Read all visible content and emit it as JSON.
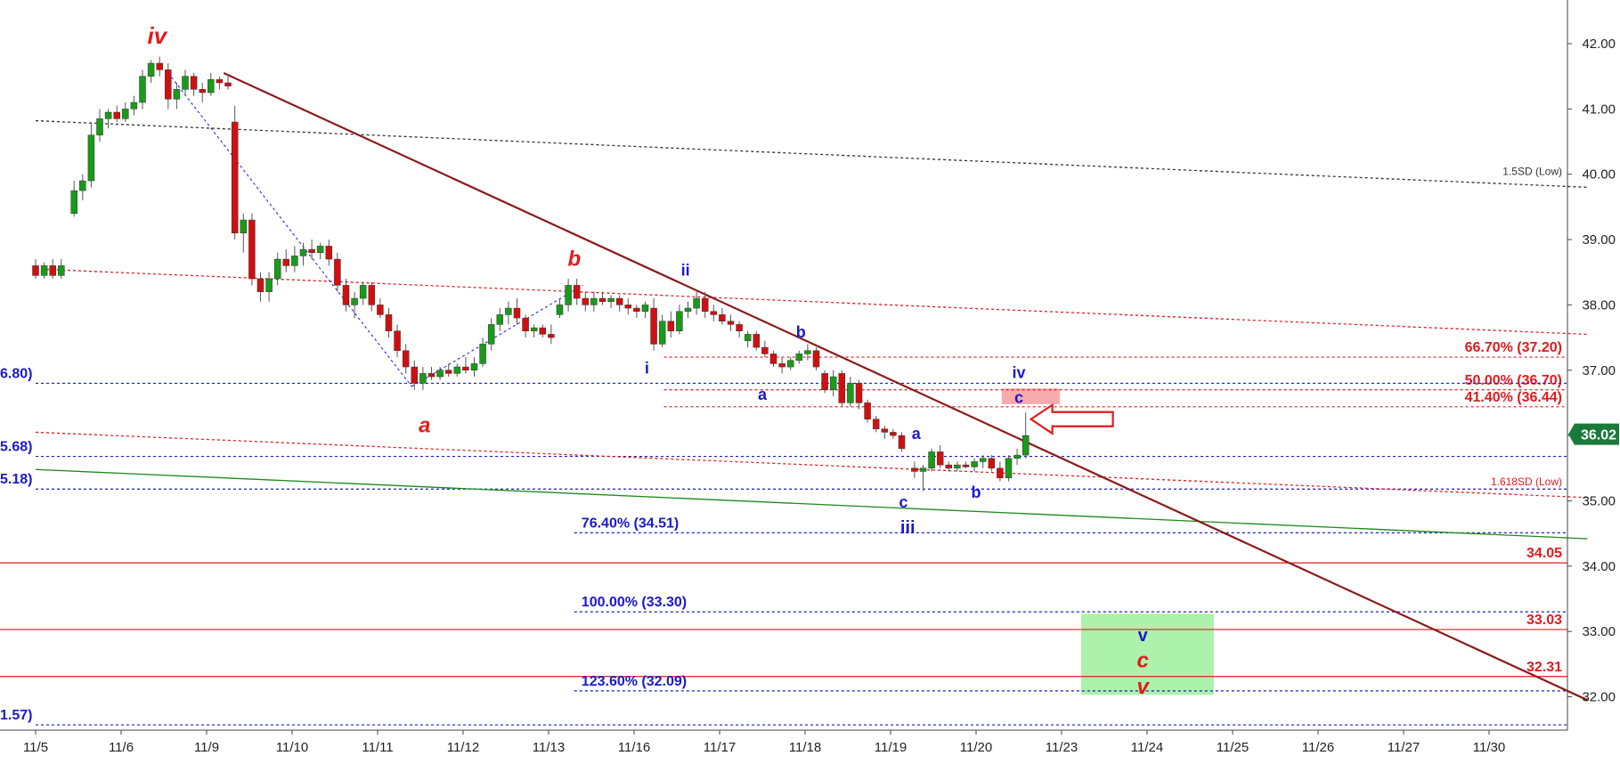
{
  "chart_data": {
    "type": "candlestick",
    "title": "",
    "xlabel": "",
    "ylabel": "",
    "ylim": [
      31.5,
      42.6
    ],
    "y_ticks": [
      "42.00",
      "41.00",
      "40.00",
      "39.00",
      "38.00",
      "37.00",
      "36.00",
      "35.00",
      "34.00",
      "33.00",
      "32.00"
    ],
    "x_ticks": [
      "11/5",
      "11/6",
      "11/9",
      "11/10",
      "11/11",
      "11/12",
      "11/13",
      "11/16",
      "11/17",
      "11/18",
      "11/19",
      "11/20",
      "11/23",
      "11/24",
      "11/25",
      "11/26",
      "11/27",
      "11/30"
    ],
    "grid": false,
    "last_price": {
      "label": "36.02",
      "value": 36.02
    },
    "candles": [
      {
        "x": 0.0,
        "o": 38.6,
        "h": 38.7,
        "l": 38.4,
        "c": 38.45
      },
      {
        "x": 0.1,
        "o": 38.45,
        "h": 38.65,
        "l": 38.4,
        "c": 38.6
      },
      {
        "x": 0.2,
        "o": 38.6,
        "h": 38.7,
        "l": 38.4,
        "c": 38.45
      },
      {
        "x": 0.3,
        "o": 38.45,
        "h": 38.7,
        "l": 38.4,
        "c": 38.6
      },
      {
        "x": 0.45,
        "o": 39.4,
        "h": 39.9,
        "l": 39.35,
        "c": 39.75
      },
      {
        "x": 0.55,
        "o": 39.75,
        "h": 40.0,
        "l": 39.6,
        "c": 39.9
      },
      {
        "x": 0.65,
        "o": 39.9,
        "h": 40.8,
        "l": 39.8,
        "c": 40.6
      },
      {
        "x": 0.75,
        "o": 40.6,
        "h": 41.0,
        "l": 40.5,
        "c": 40.85
      },
      {
        "x": 0.85,
        "o": 40.85,
        "h": 41.0,
        "l": 40.7,
        "c": 40.95
      },
      {
        "x": 0.95,
        "o": 40.95,
        "h": 41.05,
        "l": 40.8,
        "c": 40.85
      },
      {
        "x": 1.05,
        "o": 40.85,
        "h": 41.1,
        "l": 40.8,
        "c": 41.0
      },
      {
        "x": 1.15,
        "o": 41.0,
        "h": 41.2,
        "l": 40.9,
        "c": 41.1
      },
      {
        "x": 1.25,
        "o": 41.1,
        "h": 41.6,
        "l": 41.0,
        "c": 41.5
      },
      {
        "x": 1.35,
        "o": 41.5,
        "h": 41.75,
        "l": 41.4,
        "c": 41.7
      },
      {
        "x": 1.45,
        "o": 41.7,
        "h": 41.8,
        "l": 41.5,
        "c": 41.6
      },
      {
        "x": 1.55,
        "o": 41.6,
        "h": 41.7,
        "l": 41.0,
        "c": 41.15
      },
      {
        "x": 1.65,
        "o": 41.15,
        "h": 41.4,
        "l": 41.0,
        "c": 41.3
      },
      {
        "x": 1.75,
        "o": 41.3,
        "h": 41.6,
        "l": 41.2,
        "c": 41.5
      },
      {
        "x": 1.85,
        "o": 41.5,
        "h": 41.55,
        "l": 41.2,
        "c": 41.3
      },
      {
        "x": 1.95,
        "o": 41.3,
        "h": 41.4,
        "l": 41.1,
        "c": 41.25
      },
      {
        "x": 2.05,
        "o": 41.25,
        "h": 41.55,
        "l": 41.2,
        "c": 41.45
      },
      {
        "x": 2.15,
        "o": 41.45,
        "h": 41.5,
        "l": 41.3,
        "c": 41.4
      },
      {
        "x": 2.25,
        "o": 41.4,
        "h": 41.5,
        "l": 41.3,
        "c": 41.35
      },
      {
        "x": 2.33,
        "o": 40.8,
        "h": 41.05,
        "l": 39.0,
        "c": 39.1
      },
      {
        "x": 2.43,
        "o": 39.1,
        "h": 39.4,
        "l": 38.8,
        "c": 39.3
      },
      {
        "x": 2.53,
        "o": 39.3,
        "h": 39.4,
        "l": 38.3,
        "c": 38.4
      },
      {
        "x": 2.63,
        "o": 38.4,
        "h": 38.5,
        "l": 38.05,
        "c": 38.2
      },
      {
        "x": 2.73,
        "o": 38.2,
        "h": 38.5,
        "l": 38.05,
        "c": 38.4
      },
      {
        "x": 2.83,
        "o": 38.4,
        "h": 38.8,
        "l": 38.3,
        "c": 38.7
      },
      {
        "x": 2.93,
        "o": 38.7,
        "h": 38.85,
        "l": 38.5,
        "c": 38.6
      },
      {
        "x": 3.03,
        "o": 38.6,
        "h": 38.9,
        "l": 38.5,
        "c": 38.75
      },
      {
        "x": 3.13,
        "o": 38.75,
        "h": 38.95,
        "l": 38.6,
        "c": 38.85
      },
      {
        "x": 3.23,
        "o": 38.85,
        "h": 39.0,
        "l": 38.7,
        "c": 38.8
      },
      {
        "x": 3.33,
        "o": 38.8,
        "h": 38.95,
        "l": 38.7,
        "c": 38.9
      },
      {
        "x": 3.43,
        "o": 38.9,
        "h": 39.0,
        "l": 38.6,
        "c": 38.7
      },
      {
        "x": 3.53,
        "o": 38.7,
        "h": 38.8,
        "l": 38.2,
        "c": 38.3
      },
      {
        "x": 3.63,
        "o": 38.3,
        "h": 38.4,
        "l": 37.9,
        "c": 38.0
      },
      {
        "x": 3.73,
        "o": 38.0,
        "h": 38.2,
        "l": 37.8,
        "c": 38.1
      },
      {
        "x": 3.83,
        "o": 38.1,
        "h": 38.35,
        "l": 38.0,
        "c": 38.3
      },
      {
        "x": 3.93,
        "o": 38.3,
        "h": 38.35,
        "l": 37.9,
        "c": 38.0
      },
      {
        "x": 4.03,
        "o": 38.0,
        "h": 38.1,
        "l": 37.8,
        "c": 37.85
      },
      {
        "x": 4.13,
        "o": 37.85,
        "h": 37.95,
        "l": 37.5,
        "c": 37.6
      },
      {
        "x": 4.23,
        "o": 37.6,
        "h": 37.7,
        "l": 37.2,
        "c": 37.3
      },
      {
        "x": 4.33,
        "o": 37.3,
        "h": 37.4,
        "l": 36.95,
        "c": 37.05
      },
      {
        "x": 4.43,
        "o": 37.05,
        "h": 37.15,
        "l": 36.7,
        "c": 36.8
      },
      {
        "x": 4.53,
        "o": 36.8,
        "h": 37.05,
        "l": 36.7,
        "c": 36.95
      },
      {
        "x": 4.63,
        "o": 36.95,
        "h": 37.05,
        "l": 36.85,
        "c": 36.9
      },
      {
        "x": 4.73,
        "o": 36.9,
        "h": 37.05,
        "l": 36.85,
        "c": 37.0
      },
      {
        "x": 4.83,
        "o": 37.0,
        "h": 37.1,
        "l": 36.9,
        "c": 36.95
      },
      {
        "x": 4.93,
        "o": 36.95,
        "h": 37.1,
        "l": 36.9,
        "c": 37.05
      },
      {
        "x": 5.03,
        "o": 37.05,
        "h": 37.2,
        "l": 36.95,
        "c": 37.0
      },
      {
        "x": 5.13,
        "o": 37.0,
        "h": 37.2,
        "l": 36.9,
        "c": 37.1
      },
      {
        "x": 5.23,
        "o": 37.1,
        "h": 37.5,
        "l": 37.05,
        "c": 37.4
      },
      {
        "x": 5.33,
        "o": 37.4,
        "h": 37.8,
        "l": 37.3,
        "c": 37.7
      },
      {
        "x": 5.43,
        "o": 37.7,
        "h": 37.95,
        "l": 37.6,
        "c": 37.85
      },
      {
        "x": 5.53,
        "o": 37.85,
        "h": 38.05,
        "l": 37.7,
        "c": 37.95
      },
      {
        "x": 5.63,
        "o": 37.95,
        "h": 38.1,
        "l": 37.7,
        "c": 37.8
      },
      {
        "x": 5.73,
        "o": 37.8,
        "h": 37.85,
        "l": 37.5,
        "c": 37.6
      },
      {
        "x": 5.83,
        "o": 37.6,
        "h": 37.7,
        "l": 37.5,
        "c": 37.65
      },
      {
        "x": 5.93,
        "o": 37.65,
        "h": 37.7,
        "l": 37.5,
        "c": 37.55
      },
      {
        "x": 6.03,
        "o": 37.55,
        "h": 37.7,
        "l": 37.4,
        "c": 37.5
      },
      {
        "x": 6.13,
        "o": 37.85,
        "h": 38.1,
        "l": 37.8,
        "c": 38.0
      },
      {
        "x": 6.23,
        "o": 38.0,
        "h": 38.4,
        "l": 37.9,
        "c": 38.3
      },
      {
        "x": 6.33,
        "o": 38.3,
        "h": 38.4,
        "l": 38.0,
        "c": 38.1
      },
      {
        "x": 6.43,
        "o": 38.1,
        "h": 38.2,
        "l": 37.9,
        "c": 38.0
      },
      {
        "x": 6.53,
        "o": 38.0,
        "h": 38.2,
        "l": 37.9,
        "c": 38.1
      },
      {
        "x": 6.63,
        "o": 38.1,
        "h": 38.2,
        "l": 38.0,
        "c": 38.05
      },
      {
        "x": 6.73,
        "o": 38.05,
        "h": 38.15,
        "l": 37.95,
        "c": 38.1
      },
      {
        "x": 6.83,
        "o": 38.1,
        "h": 38.15,
        "l": 37.9,
        "c": 38.0
      },
      {
        "x": 6.93,
        "o": 38.0,
        "h": 38.1,
        "l": 37.85,
        "c": 37.95
      },
      {
        "x": 7.03,
        "o": 37.95,
        "h": 38.0,
        "l": 37.8,
        "c": 37.9
      },
      {
        "x": 7.13,
        "o": 37.9,
        "h": 38.05,
        "l": 37.8,
        "c": 38.0
      },
      {
        "x": 7.23,
        "o": 37.95,
        "h": 38.1,
        "l": 37.3,
        "c": 37.4
      },
      {
        "x": 7.33,
        "o": 37.4,
        "h": 37.85,
        "l": 37.35,
        "c": 37.75
      },
      {
        "x": 7.43,
        "o": 37.75,
        "h": 37.9,
        "l": 37.5,
        "c": 37.6
      },
      {
        "x": 7.53,
        "o": 37.6,
        "h": 38.0,
        "l": 37.55,
        "c": 37.9
      },
      {
        "x": 7.63,
        "o": 37.9,
        "h": 38.05,
        "l": 37.8,
        "c": 37.95
      },
      {
        "x": 7.73,
        "o": 37.95,
        "h": 38.2,
        "l": 37.85,
        "c": 38.1
      },
      {
        "x": 7.83,
        "o": 38.1,
        "h": 38.2,
        "l": 37.8,
        "c": 37.9
      },
      {
        "x": 7.93,
        "o": 37.9,
        "h": 38.0,
        "l": 37.75,
        "c": 37.85
      },
      {
        "x": 8.03,
        "o": 37.85,
        "h": 37.95,
        "l": 37.7,
        "c": 37.75
      },
      {
        "x": 8.13,
        "o": 37.75,
        "h": 37.85,
        "l": 37.6,
        "c": 37.7
      },
      {
        "x": 8.23,
        "o": 37.7,
        "h": 37.75,
        "l": 37.5,
        "c": 37.6
      },
      {
        "x": 8.33,
        "o": 37.45,
        "h": 37.6,
        "l": 37.35,
        "c": 37.55
      },
      {
        "x": 8.43,
        "o": 37.55,
        "h": 37.6,
        "l": 37.3,
        "c": 37.35
      },
      {
        "x": 8.53,
        "o": 37.35,
        "h": 37.45,
        "l": 37.2,
        "c": 37.25
      },
      {
        "x": 8.63,
        "o": 37.25,
        "h": 37.3,
        "l": 37.05,
        "c": 37.1
      },
      {
        "x": 8.73,
        "o": 37.1,
        "h": 37.2,
        "l": 36.95,
        "c": 37.05
      },
      {
        "x": 8.83,
        "o": 37.05,
        "h": 37.2,
        "l": 37.0,
        "c": 37.15
      },
      {
        "x": 8.93,
        "o": 37.15,
        "h": 37.3,
        "l": 37.1,
        "c": 37.25
      },
      {
        "x": 9.03,
        "o": 37.25,
        "h": 37.4,
        "l": 37.15,
        "c": 37.3
      },
      {
        "x": 9.13,
        "o": 37.3,
        "h": 37.35,
        "l": 37.0,
        "c": 37.05
      },
      {
        "x": 9.23,
        "o": 36.95,
        "h": 37.0,
        "l": 36.65,
        "c": 36.7
      },
      {
        "x": 9.33,
        "o": 36.7,
        "h": 37.0,
        "l": 36.6,
        "c": 36.9
      },
      {
        "x": 9.43,
        "o": 36.95,
        "h": 37.0,
        "l": 36.45,
        "c": 36.5
      },
      {
        "x": 9.53,
        "o": 36.5,
        "h": 36.9,
        "l": 36.45,
        "c": 36.8
      },
      {
        "x": 9.63,
        "o": 36.8,
        "h": 36.85,
        "l": 36.4,
        "c": 36.5
      },
      {
        "x": 9.73,
        "o": 36.5,
        "h": 36.55,
        "l": 36.2,
        "c": 36.25
      },
      {
        "x": 9.83,
        "o": 36.25,
        "h": 36.3,
        "l": 36.05,
        "c": 36.1
      },
      {
        "x": 9.93,
        "o": 36.1,
        "h": 36.15,
        "l": 35.95,
        "c": 36.05
      },
      {
        "x": 10.03,
        "o": 36.05,
        "h": 36.1,
        "l": 35.95,
        "c": 36.0
      },
      {
        "x": 10.13,
        "o": 36.0,
        "h": 36.05,
        "l": 35.75,
        "c": 35.8
      },
      {
        "x": 10.28,
        "o": 35.5,
        "h": 35.6,
        "l": 35.35,
        "c": 35.45
      },
      {
        "x": 10.38,
        "o": 35.45,
        "h": 35.55,
        "l": 35.15,
        "c": 35.5
      },
      {
        "x": 10.48,
        "o": 35.5,
        "h": 35.8,
        "l": 35.45,
        "c": 35.75
      },
      {
        "x": 10.58,
        "o": 35.75,
        "h": 35.85,
        "l": 35.5,
        "c": 35.55
      },
      {
        "x": 10.68,
        "o": 35.55,
        "h": 35.6,
        "l": 35.45,
        "c": 35.5
      },
      {
        "x": 10.78,
        "o": 35.5,
        "h": 35.6,
        "l": 35.45,
        "c": 35.55
      },
      {
        "x": 10.88,
        "o": 35.55,
        "h": 35.6,
        "l": 35.5,
        "c": 35.52
      },
      {
        "x": 10.98,
        "o": 35.52,
        "h": 35.65,
        "l": 35.45,
        "c": 35.6
      },
      {
        "x": 11.08,
        "o": 35.6,
        "h": 35.7,
        "l": 35.5,
        "c": 35.65
      },
      {
        "x": 11.18,
        "o": 35.65,
        "h": 35.7,
        "l": 35.45,
        "c": 35.5
      },
      {
        "x": 11.28,
        "o": 35.5,
        "h": 35.6,
        "l": 35.3,
        "c": 35.35
      },
      {
        "x": 11.38,
        "o": 35.35,
        "h": 35.7,
        "l": 35.3,
        "c": 35.65
      },
      {
        "x": 11.48,
        "o": 35.65,
        "h": 35.8,
        "l": 35.55,
        "c": 35.7
      },
      {
        "x": 11.58,
        "o": 35.7,
        "h": 36.35,
        "l": 35.65,
        "c": 36.0
      }
    ],
    "levels": [
      {
        "label": "34.05",
        "value": 34.05,
        "color": "#e41a1c",
        "dash": false
      },
      {
        "label": "33.03",
        "value": 33.03,
        "color": "#e41a1c",
        "dash": false
      },
      {
        "label": "32.31",
        "value": 32.31,
        "color": "#e41a1c",
        "dash": false
      },
      {
        "label": "66.70% (37.20)",
        "value": 37.2,
        "color": "#e41a1c",
        "dash": true,
        "from_x": 7.35
      },
      {
        "label": "50.00% (36.70)",
        "value": 36.7,
        "color": "#e41a1c",
        "dash": true,
        "from_x": 7.35
      },
      {
        "label": "41.40% (36.44)",
        "value": 36.44,
        "color": "#e41a1c",
        "dash": true,
        "from_x": 7.35
      },
      {
        "label": "76.40% (34.51)",
        "value": 34.51,
        "color": "#1a1acc",
        "dash": true,
        "from_x": 6.3
      },
      {
        "label": "100.00% (33.30)",
        "value": 33.3,
        "color": "#1a1acc",
        "dash": true,
        "from_x": 6.3
      },
      {
        "label": "123.60% (32.09)",
        "value": 32.09,
        "color": "#1a1acc",
        "dash": true,
        "from_x": 6.3
      },
      {
        "label": "6.80)",
        "value": 36.8,
        "color": "#1a1acc",
        "dash": true,
        "from_x": 0.0,
        "label_left": true
      },
      {
        "label": "5.68)",
        "value": 35.68,
        "color": "#1a1acc",
        "dash": true,
        "from_x": 0.0,
        "label_left": true
      },
      {
        "label": "5.18)",
        "value": 35.18,
        "color": "#1a1acc",
        "dash": true,
        "from_x": 0.0,
        "label_left": true
      },
      {
        "label": "1.57)",
        "value": 31.57,
        "color": "#1a1acc",
        "dash": true,
        "from_x": 0.0,
        "label_left": true
      }
    ],
    "trend_lines": [
      {
        "name": "",
        "label": "1.5SD (Low)",
        "from": [
          0.0,
          40.82
        ],
        "to": [
          18.15,
          39.8
        ],
        "color": "#333333",
        "dash": true
      },
      {
        "name": "",
        "label": "",
        "from": [
          0.0,
          38.55
        ],
        "to": [
          18.15,
          37.55
        ],
        "color": "#e41a1c",
        "dash": true
      },
      {
        "name": "",
        "label": "1.618SD (Low)",
        "from": [
          0.0,
          36.05
        ],
        "to": [
          18.15,
          35.05
        ],
        "color": "#e41a1c",
        "dash": true
      },
      {
        "name": "",
        "label": "",
        "from": [
          0.0,
          35.48
        ],
        "to": [
          18.15,
          34.42
        ],
        "color": "#1a8a1a",
        "dash": false
      },
      {
        "name": "",
        "label": "",
        "from": [
          2.2,
          41.55
        ],
        "to": [
          18.15,
          31.95
        ],
        "color": "#8b1a1a",
        "dash": false,
        "width": 2.2
      },
      {
        "name": "",
        "label": "",
        "from": [
          1.55,
          41.55
        ],
        "to": [
          4.4,
          36.75
        ],
        "color": "#1a1acc",
        "dash": true,
        "width": 1
      },
      {
        "name": "",
        "label": "",
        "from": [
          4.4,
          36.75
        ],
        "to": [
          6.4,
          38.3
        ],
        "color": "#1a1acc",
        "dash": true,
        "width": 1
      }
    ],
    "zones": [
      {
        "from_x": 11.3,
        "to_x": 11.98,
        "from_y": 36.48,
        "to_y": 36.72,
        "color": "#f5a3a3"
      },
      {
        "from_x": 12.23,
        "to_x": 13.78,
        "from_y": 32.03,
        "to_y": 33.27,
        "color": "#a3f0a3"
      }
    ],
    "wave_labels": [
      {
        "text": "iv",
        "x": 1.42,
        "y": 42.0,
        "style": "red",
        "size": 26
      },
      {
        "text": "a",
        "x": 4.55,
        "y": 36.05,
        "style": "red",
        "size": 24
      },
      {
        "text": "b",
        "x": 6.3,
        "y": 38.6,
        "style": "red",
        "size": 24
      },
      {
        "text": "ii",
        "x": 7.6,
        "y": 38.45,
        "style": "blue",
        "size": 18
      },
      {
        "text": "i",
        "x": 7.15,
        "y": 36.95,
        "style": "blue",
        "size": 18
      },
      {
        "text": "b",
        "x": 8.95,
        "y": 37.5,
        "style": "blue",
        "size": 18
      },
      {
        "text": "a",
        "x": 8.5,
        "y": 36.55,
        "style": "blue",
        "size": 18
      },
      {
        "text": "a",
        "x": 10.3,
        "y": 35.95,
        "style": "blue",
        "size": 18
      },
      {
        "text": "c",
        "x": 10.15,
        "y": 34.9,
        "style": "blue",
        "size": 18
      },
      {
        "text": "iii",
        "x": 10.2,
        "y": 34.5,
        "style": "blue",
        "size": 20
      },
      {
        "text": "b",
        "x": 11.0,
        "y": 35.05,
        "style": "blue",
        "size": 18
      },
      {
        "text": "iv",
        "x": 11.5,
        "y": 36.88,
        "style": "blue",
        "size": 18
      },
      {
        "text": "c",
        "x": 11.5,
        "y": 36.5,
        "style": "blue",
        "size": 18
      },
      {
        "text": "v",
        "x": 12.95,
        "y": 32.85,
        "style": "blue",
        "size": 20
      },
      {
        "text": "c",
        "x": 12.95,
        "y": 32.45,
        "style": "red",
        "size": 24
      },
      {
        "text": "v",
        "x": 12.95,
        "y": 32.05,
        "style": "red",
        "size": 24
      }
    ],
    "arrow": {
      "x": 11.6,
      "y": 36.25,
      "color": "#e41a1c"
    }
  }
}
